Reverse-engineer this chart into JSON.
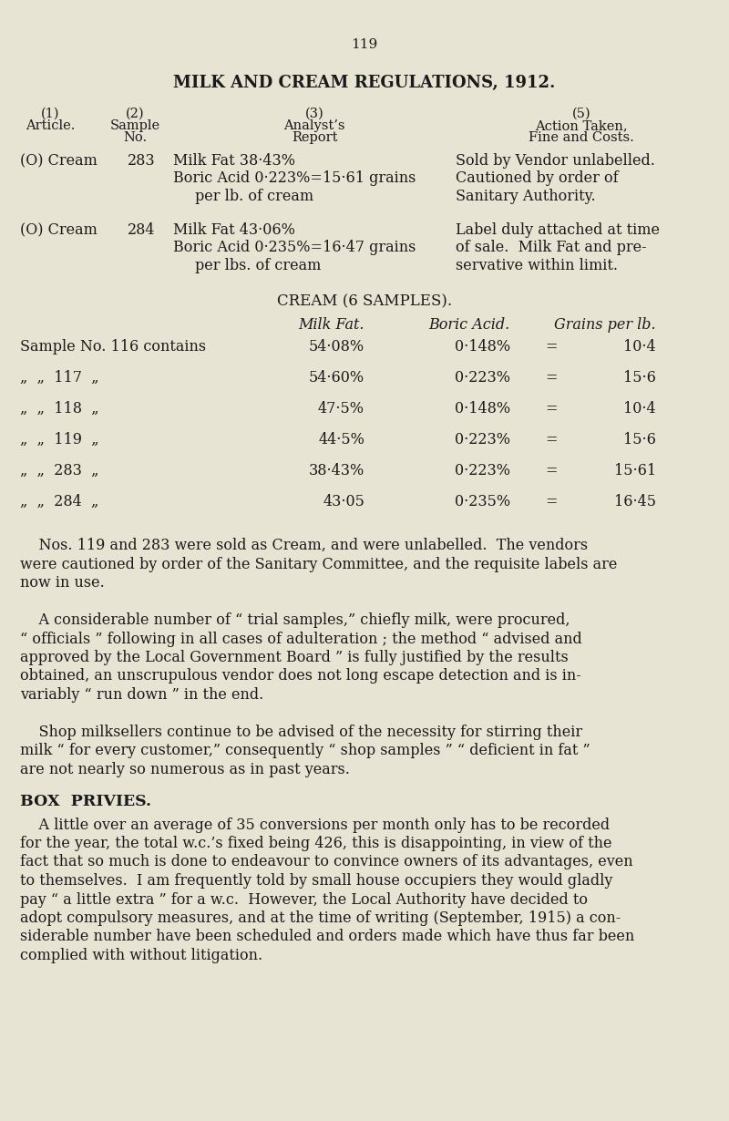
{
  "bg_color": "#e8e4d4",
  "text_color": "#1a1a1a",
  "page_number": "119",
  "title": "MILK AND CREAM REGULATIONS, 1912.",
  "cream_title": "CREAM (6 SAMPLES).",
  "box_privies_title": "BOX  PRIVIES."
}
